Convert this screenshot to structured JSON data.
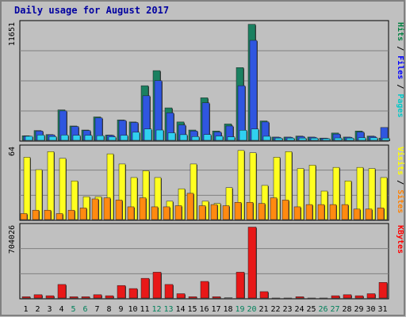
{
  "chart_data": {
    "type": "bar",
    "title": "Daily usage for August 2017",
    "categories": [
      "1",
      "2",
      "3",
      "4",
      "5",
      "6",
      "7",
      "8",
      "9",
      "10",
      "11",
      "12",
      "13",
      "14",
      "15",
      "16",
      "17",
      "18",
      "19",
      "20",
      "21",
      "22",
      "23",
      "24",
      "25",
      "26",
      "27",
      "28",
      "29",
      "30",
      "31"
    ],
    "weekend_days": [
      "5",
      "6",
      "12",
      "13",
      "19",
      "20",
      "26",
      "27"
    ],
    "panels": [
      {
        "id": "top",
        "y_max_label": "11651",
        "ylim": [
          0,
          11651
        ],
        "label_parts": [
          "Pages",
          "Files",
          "Hits"
        ],
        "label_colors": [
          "#00c8c8",
          "#0000ff",
          "#008040"
        ],
        "series": [
          {
            "name": "Hits",
            "color": "#1a8060",
            "values": [
              530,
              1050,
              650,
              3100,
              1500,
              1100,
              2400,
              600,
              2100,
              1900,
              5500,
              7000,
              3300,
              1900,
              1100,
              4300,
              1000,
              1700,
              7300,
              11600,
              2000,
              400,
              400,
              500,
              400,
              300,
              800,
              400,
              1000,
              500,
              300
            ]
          },
          {
            "name": "Files",
            "color": "#2f56e0",
            "values": [
              500,
              1000,
              620,
              3000,
              1450,
              1050,
              2300,
              570,
              2050,
              1850,
              4500,
              6000,
              2800,
              1600,
              1000,
              3800,
              900,
              1500,
              5500,
              10000,
              1900,
              380,
              380,
              460,
              380,
              280,
              700,
              380,
              900,
              460,
              1350
            ]
          },
          {
            "name": "Pages",
            "color": "#30d0f0",
            "values": [
              480,
              600,
              450,
              600,
              580,
              580,
              540,
              420,
              580,
              880,
              1200,
              1100,
              820,
              640,
              450,
              650,
              500,
              420,
              1080,
              1200,
              480,
              300,
              300,
              300,
              300,
              240,
              310,
              300,
              330,
              330,
              300
            ]
          }
        ]
      },
      {
        "id": "middle",
        "y_max_label": "64",
        "ylim": [
          0,
          64
        ],
        "label_parts": [
          "Sites",
          "Visits"
        ],
        "label_colors": [
          "#ff8000",
          "#ffff00"
        ],
        "series": [
          {
            "name": "Visits",
            "color": "#ffff20",
            "values": [
              56,
              45,
              61,
              55,
              35,
              21,
              21,
              59,
              50,
              38,
              44,
              38,
              17,
              28,
              50,
              17,
              15,
              29,
              62,
              60,
              31,
              56,
              61,
              46,
              49,
              26,
              47,
              35,
              47,
              46,
              38
            ]
          },
          {
            "name": "Sites",
            "color": "#ff8a10",
            "values": [
              6,
              9,
              9,
              6,
              9,
              11,
              19,
              20,
              18,
              12,
              20,
              12,
              12,
              13,
              24,
              13,
              14,
              13,
              16,
              16,
              15,
              20,
              18,
              12,
              14,
              14,
              14,
              14,
              10,
              10,
              11
            ]
          }
        ]
      },
      {
        "id": "bottom",
        "y_max_label": "704026",
        "ylim": [
          0,
          704026
        ],
        "label_parts": [
          "KBytes"
        ],
        "label_colors": [
          "#ff0000"
        ],
        "series": [
          {
            "name": "KBytes",
            "color": "#e81818",
            "values": [
              20000,
              40000,
              30000,
              140000,
              20000,
              20000,
              40000,
              30000,
              130000,
              100000,
              200000,
              260000,
              140000,
              50000,
              20000,
              170000,
              20000,
              10000,
              260000,
              700000,
              70000,
              8000,
              8000,
              20000,
              8000,
              8000,
              30000,
              40000,
              30000,
              50000,
              160000
            ]
          }
        ]
      }
    ]
  }
}
